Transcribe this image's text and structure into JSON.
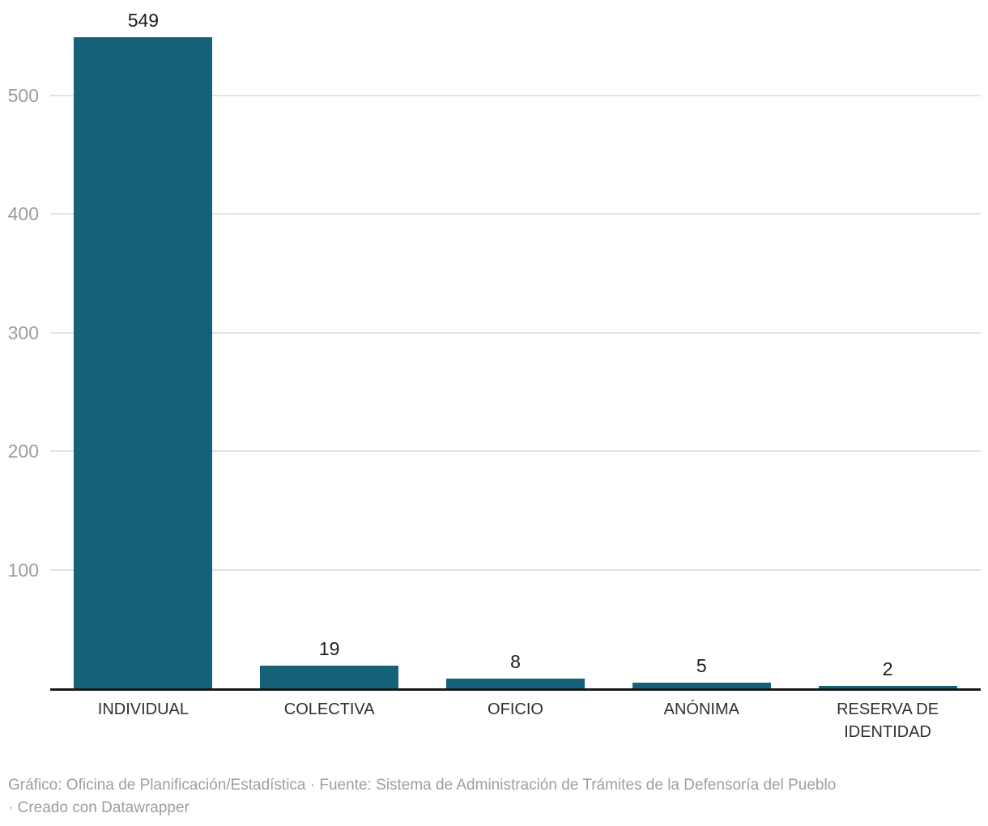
{
  "chart_data": {
    "type": "bar",
    "categories": [
      "INDIVIDUAL",
      "COLECTIVA",
      "OFICIO",
      "ANÓNIMA",
      "RESERVA DE IDENTIDAD"
    ],
    "values": [
      549,
      19,
      8,
      5,
      2
    ],
    "title": "",
    "xlabel": "",
    "ylabel": "",
    "ylim": [
      0,
      580
    ],
    "yticks": [
      100,
      200,
      300,
      400,
      500
    ],
    "grid": true,
    "legend": false,
    "value_labels_shown": true
  },
  "footer": {
    "line1": "Gráfico: Oficina de Planificación/Estadística · Fuente: Sistema de Administración de Trámites de la Defensoría del Pueblo",
    "line2": "· Creado con Datawrapper"
  },
  "colors": {
    "bar": "#16617a",
    "gridline": "#e3e3e3",
    "axis_tick_label": "#9d9d9d",
    "category_label": "#2f2f2f",
    "value_label": "#1d1d1d",
    "baseline": "#17181a",
    "footer_text": "#9e9e9e",
    "background": "#ffffff"
  }
}
